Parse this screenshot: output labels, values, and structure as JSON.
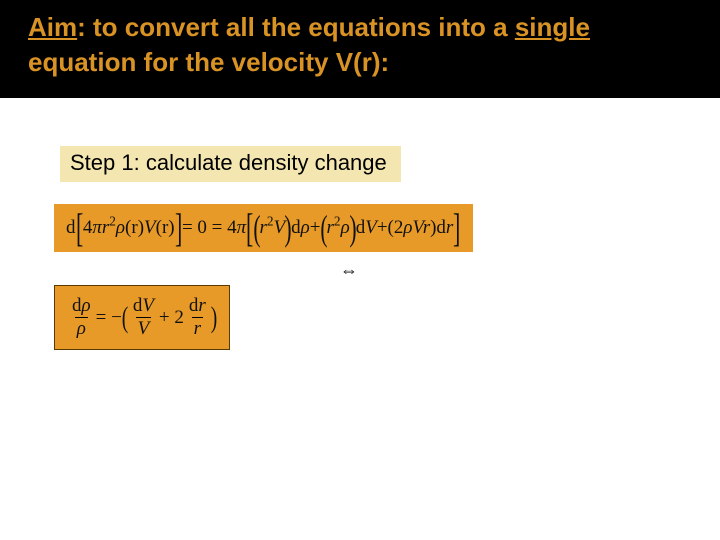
{
  "colors": {
    "header_bg": "#000000",
    "header_text": "#d99324",
    "step_bg": "#f3e6b0",
    "step_text": "#000000",
    "eqbox_bg": "#e79a27",
    "eqbox_border": "#5a3a00"
  },
  "header": {
    "aim_label": "Aim",
    "colon": ": ",
    "line": "to convert all the equations into a ",
    "single": "single",
    "line2": "equation for the velocity V(r):"
  },
  "step": {
    "label": "Step 1: calculate density change"
  },
  "equations": {
    "eq1": {
      "d": "d",
      "inside1_a": "4",
      "inside1_pi": "π",
      "inside1_r2": "r",
      "inside1_sup": "2",
      "inside1_rho": "ρ",
      "inside1_r_arg": "(r)",
      "inside1_V": "V",
      "inside1_V_arg": "(r)",
      "eq0": " = 0 = 4",
      "pi2": "π",
      "t1_a": "r",
      "t1_sup": "2",
      "t1_V": "V",
      "t1_d": "d",
      "t1_rho": "ρ",
      "plus1": " + ",
      "t2_a": "r",
      "t2_sup": "2",
      "t2_rho": "ρ",
      "t2_d": "d",
      "t2_V": "V",
      "plus2": " + ",
      "t3_a": "(2",
      "t3_rho": "ρ",
      "t3_V": "V",
      "t3_r": "r",
      "t3_close": ")",
      "t3_d": "d",
      "t3_dr": "r"
    },
    "equiv": "⇔",
    "eq2": {
      "lhs_num_d": "d",
      "lhs_num_rho": "ρ",
      "lhs_den_rho": "ρ",
      "eq": " = −",
      "f1_num_d": "d",
      "f1_num_V": "V",
      "f1_den_V": "V",
      "plus": " + 2",
      "f2_num_d": "d",
      "f2_num_r": "r",
      "f2_den_r": "r"
    }
  }
}
